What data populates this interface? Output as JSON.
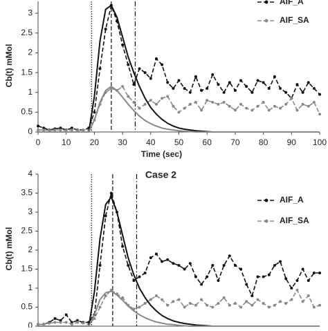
{
  "chart_data": [
    {
      "type": "line",
      "y_label": "Cb(t) mMol",
      "x_label": "Time (sec)",
      "xlim": [
        0,
        100
      ],
      "xticks": [
        0,
        10,
        20,
        30,
        40,
        50,
        60,
        70,
        80,
        90,
        100
      ],
      "ylim": [
        0,
        3.3
      ],
      "yticks": [
        0,
        0.5,
        1,
        1.5,
        2,
        2.5,
        3
      ],
      "legend": "upper right",
      "vlines": [
        {
          "x": 19,
          "style": "dotted"
        },
        {
          "x": 26,
          "style": "dashed"
        },
        {
          "x": 34.5,
          "style": "dashdot"
        }
      ],
      "x": [
        0,
        2,
        4,
        6,
        8,
        10,
        12,
        14,
        16,
        18,
        20,
        22,
        24,
        26,
        28,
        30,
        32,
        34,
        36,
        38,
        40,
        42,
        44,
        46,
        48,
        50,
        52,
        54,
        56,
        58,
        60,
        62,
        64,
        66,
        68,
        70,
        72,
        74,
        76,
        78,
        80,
        82,
        84,
        86,
        88,
        90,
        92,
        94,
        96,
        98,
        100
      ],
      "series": [
        {
          "name": "AIF_A",
          "color": "#111111",
          "dash": "dashed",
          "markers": true,
          "values": [
            0.15,
            0.1,
            0.05,
            0.08,
            0.1,
            0.05,
            0.1,
            0.05,
            0.05,
            0.1,
            0.5,
            1.6,
            2.6,
            3.2,
            2.8,
            2.2,
            1.7,
            1.2,
            1.6,
            1.5,
            1.35,
            1.85,
            1.7,
            1.25,
            1.1,
            1.3,
            1.1,
            1.0,
            1.4,
            1.05,
            1.1,
            1.45,
            1.2,
            1.0,
            1.25,
            1.05,
            1.3,
            1.15,
            1.0,
            1.3,
            1.25,
            1.1,
            1.4,
            1.1,
            1.0,
            0.85,
            1.2,
            1.0,
            1.25,
            1.1,
            0.95
          ]
        },
        {
          "name": "AIF_SA",
          "color": "#888888",
          "dash": "dashed",
          "markers": true,
          "values": [
            0.05,
            0.05,
            0.04,
            0.05,
            0.05,
            0.04,
            0.05,
            0.04,
            0.05,
            0.05,
            0.3,
            0.7,
            1.0,
            1.1,
            1.05,
            1.15,
            0.9,
            0.75,
            0.6,
            0.7,
            0.8,
            0.7,
            0.85,
            0.9,
            0.65,
            0.5,
            0.6,
            0.7,
            0.75,
            0.55,
            0.8,
            0.75,
            0.7,
            0.75,
            0.65,
            0.55,
            0.7,
            0.6,
            0.55,
            0.65,
            0.75,
            0.55,
            0.65,
            0.6,
            0.7,
            0.85,
            0.55,
            0.7,
            0.65,
            0.75,
            0.45
          ]
        },
        {
          "color": "#111111",
          "dash": "solid",
          "markers": false,
          "values": [
            0,
            0,
            0,
            0,
            0,
            0,
            0,
            0,
            0,
            0,
            0.9,
            2.3,
            3.1,
            3.2,
            2.9,
            2.4,
            1.9,
            1.5,
            1.15,
            0.85,
            0.62,
            0.45,
            0.32,
            0.22,
            0.15,
            0.1,
            0.07,
            0.05,
            0.03,
            0.02,
            0.01,
            0,
            0,
            0,
            0,
            0,
            0,
            0,
            0,
            0,
            0,
            0,
            0,
            0,
            0,
            0,
            0,
            0,
            0,
            0,
            0
          ]
        },
        {
          "color": "#888888",
          "dash": "solid",
          "markers": false,
          "values": [
            0,
            0,
            0,
            0,
            0,
            0,
            0,
            0,
            0,
            0,
            0.3,
            0.75,
            1.05,
            1.15,
            1.05,
            0.88,
            0.7,
            0.54,
            0.4,
            0.29,
            0.21,
            0.15,
            0.1,
            0.07,
            0.05,
            0.03,
            0.02,
            0.01,
            0,
            0,
            0,
            0,
            0,
            0,
            0,
            0,
            0,
            0,
            0,
            0,
            0,
            0,
            0,
            0,
            0,
            0,
            0,
            0,
            0,
            0,
            0
          ]
        }
      ]
    },
    {
      "type": "line",
      "title": "Case 2",
      "y_label": "Cb(t) mMol",
      "xlim": [
        0,
        100
      ],
      "ylim": [
        0,
        4
      ],
      "yticks": [
        0,
        0.5,
        1,
        1.5,
        2,
        2.5,
        3,
        3.5,
        4
      ],
      "legend": "upper right",
      "vlines": [
        {
          "x": 19,
          "style": "dotted"
        },
        {
          "x": 26.5,
          "style": "dashed"
        },
        {
          "x": 35,
          "style": "dashdot"
        }
      ],
      "x": [
        0,
        2,
        4,
        6,
        8,
        10,
        12,
        14,
        16,
        18,
        20,
        22,
        24,
        26,
        28,
        30,
        32,
        34,
        36,
        38,
        40,
        42,
        44,
        46,
        48,
        50,
        52,
        54,
        56,
        58,
        60,
        62,
        64,
        66,
        68,
        70,
        72,
        74,
        76,
        78,
        80,
        82,
        84,
        86,
        88,
        90,
        92,
        94,
        96,
        98,
        100
      ],
      "series": [
        {
          "name": "AIF_A",
          "color": "#111111",
          "dash": "dashed",
          "markers": true,
          "values": [
            0.05,
            0.05,
            0.1,
            0.2,
            0.15,
            0.3,
            0.1,
            0.15,
            0.1,
            0.1,
            0.3,
            1.6,
            2.9,
            3.5,
            3.0,
            2.1,
            1.6,
            1.2,
            1.3,
            1.4,
            1.8,
            1.9,
            1.7,
            1.75,
            1.65,
            1.6,
            1.5,
            1.65,
            1.3,
            1.1,
            1.3,
            1.6,
            1.2,
            1.6,
            1.85,
            1.6,
            1.5,
            1.1,
            0.8,
            1.3,
            1.3,
            1.35,
            1.6,
            1.7,
            1.25,
            1.0,
            1.2,
            1.5,
            1.2,
            1.4,
            1.4
          ]
        },
        {
          "name": "AIF_SA",
          "color": "#888888",
          "dash": "dashed",
          "markers": true,
          "values": [
            0.05,
            0.05,
            0.08,
            0.1,
            0.1,
            0.1,
            0.05,
            0.1,
            0.08,
            0.05,
            0.2,
            0.5,
            0.8,
            0.95,
            0.85,
            0.75,
            0.55,
            0.45,
            0.5,
            0.6,
            0.7,
            0.8,
            0.7,
            0.55,
            0.65,
            0.7,
            0.5,
            0.6,
            0.55,
            0.7,
            0.55,
            0.5,
            0.6,
            0.75,
            0.55,
            0.6,
            0.5,
            0.65,
            0.55,
            0.7,
            0.6,
            0.5,
            0.55,
            0.65,
            0.6,
            0.7,
            0.95,
            0.65,
            0.8,
            0.5,
            0.55
          ]
        },
        {
          "color": "#111111",
          "dash": "solid",
          "markers": false,
          "values": [
            0,
            0,
            0,
            0,
            0,
            0,
            0,
            0,
            0,
            0,
            0.9,
            2.3,
            3.2,
            3.4,
            3.0,
            2.4,
            1.8,
            1.35,
            1.0,
            0.75,
            0.55,
            0.4,
            0.28,
            0.2,
            0.14,
            0.1,
            0.07,
            0.05,
            0.03,
            0.02,
            0.01,
            0,
            0,
            0,
            0,
            0,
            0,
            0,
            0,
            0,
            0,
            0,
            0,
            0,
            0,
            0,
            0,
            0,
            0,
            0,
            0
          ]
        },
        {
          "color": "#888888",
          "dash": "solid",
          "markers": false,
          "values": [
            0,
            0,
            0,
            0,
            0,
            0,
            0,
            0,
            0,
            0,
            0.3,
            0.7,
            0.88,
            0.92,
            0.82,
            0.68,
            0.53,
            0.4,
            0.3,
            0.22,
            0.16,
            0.11,
            0.08,
            0.05,
            0.04,
            0.02,
            0.01,
            0,
            0,
            0,
            0,
            0,
            0,
            0,
            0,
            0,
            0,
            0,
            0,
            0,
            0,
            0,
            0,
            0,
            0,
            0,
            0,
            0,
            0,
            0,
            0
          ]
        }
      ]
    }
  ]
}
